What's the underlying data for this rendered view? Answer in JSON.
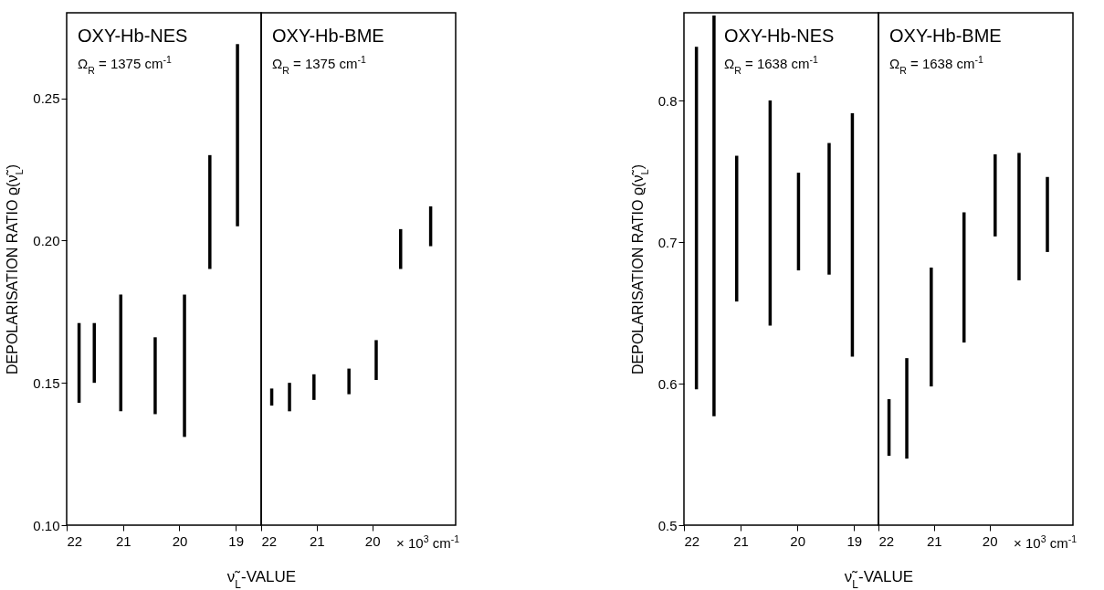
{
  "chart_data": [
    {
      "type": "bar",
      "ylabel": "DEPOLARISATION RATIO ϱ(ν̃$_{L}$)",
      "xlabel": "ν̃$_{L}$-VALUE",
      "annotations": [
        "OXY-Hb-NES",
        "Ω$_{R}$ = 1375 cm$^{-1}$"
      ],
      "color": "#000000",
      "x": [
        21.78,
        21.51,
        21.04,
        20.43,
        19.91,
        19.46,
        18.97
      ],
      "base": [
        0.143,
        0.15,
        0.14,
        0.139,
        0.131,
        0.19,
        0.205
      ],
      "values": [
        0.028,
        0.021,
        0.041,
        0.027,
        0.05,
        0.04,
        0.064
      ],
      "xlim": [
        22,
        18.55
      ],
      "xticks": [
        22,
        21,
        20,
        19
      ],
      "ylim": [
        0.1,
        0.28
      ],
      "yticks": [
        {
          "value": 0.1,
          "label": "0.10"
        },
        0.15,
        {
          "value": 0.2,
          "label": "0.20"
        },
        0.25
      ]
    },
    {
      "type": "bar",
      "annotations": [
        "OXY-Hb-BME",
        "Ω$_{R}$ = 1375 cm$^{-1}$",
        "× 10$^{3}$ cm$^{-1}$"
      ],
      "color": "#000000",
      "x": [
        21.81,
        21.49,
        21.05,
        20.42,
        19.93,
        19.49,
        18.95
      ],
      "base": [
        0.142,
        0.14,
        0.144,
        0.146,
        0.151,
        0.19,
        0.198
      ],
      "values": [
        0.006,
        0.01,
        0.009,
        0.009,
        0.014,
        0.014,
        0.014
      ],
      "xlim": [
        22,
        18.5
      ],
      "xticks": [
        22,
        21,
        20
      ],
      "ylim": [
        0.1,
        0.28
      ],
      "tick_labels": "x"
    },
    {
      "type": "bar",
      "ylabel": "DEPOLARISATION RATIO ϱ(ν̃$_{L}$)",
      "xlabel": "ν̃$_{L}$-VALUE",
      "annotations": [
        "OXY-Hb-NES",
        "Ω$_{R}$ = 1638 cm$^{-1}$"
      ],
      "color": "#000000",
      "x": [
        21.78,
        21.47,
        21.07,
        20.48,
        19.98,
        19.44,
        19.03
      ],
      "base": [
        0.596,
        0.577,
        0.658,
        0.641,
        0.68,
        0.677,
        0.619
      ],
      "values": [
        0.242,
        0.283,
        0.103,
        0.159,
        0.069,
        0.093,
        0.172
      ],
      "xlim": [
        22,
        18.57
      ],
      "xticks": [
        22,
        21,
        20,
        19
      ],
      "ylim": [
        0.5,
        0.862
      ],
      "yticks": [
        0.5,
        0.6,
        0.7,
        0.8
      ]
    },
    {
      "type": "bar",
      "annotations": [
        "OXY-Hb-BME",
        "Ω$_{R}$ = 1638 cm$^{-1}$",
        "× 10$^{3}$ cm$^{-1}$"
      ],
      "color": "#000000",
      "x": [
        21.81,
        21.49,
        21.05,
        20.46,
        19.9,
        19.47,
        18.96
      ],
      "base": [
        0.549,
        0.547,
        0.598,
        0.629,
        0.704,
        0.673,
        0.693
      ],
      "values": [
        0.04,
        0.071,
        0.084,
        0.092,
        0.058,
        0.09,
        0.053
      ],
      "xlim": [
        22,
        18.5
      ],
      "xticks": [
        22,
        21,
        20
      ],
      "ylim": [
        0.5,
        0.862
      ],
      "tick_labels": "x"
    }
  ]
}
